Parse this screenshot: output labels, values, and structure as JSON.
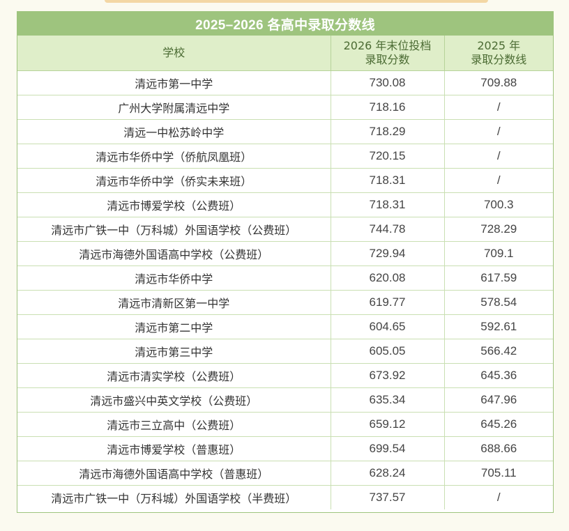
{
  "title": "2025–2026 各高中录取分数线",
  "headers": {
    "school": "学校",
    "score_2026_line1": "2026 年末位投档",
    "score_2026_line2": "录取分数",
    "score_2025_line1": "2025 年",
    "score_2025_line2": "录取分数线"
  },
  "rows": [
    {
      "school": "清远市第一中学",
      "score_2026": "730.08",
      "score_2025": "709.88"
    },
    {
      "school": "广州大学附属清远中学",
      "score_2026": "718.16",
      "score_2025": "/"
    },
    {
      "school": "清远一中松苏岭中学",
      "score_2026": "718.29",
      "score_2025": "/"
    },
    {
      "school": "清远市华侨中学（侨航凤凰班）",
      "score_2026": "720.15",
      "score_2025": "/"
    },
    {
      "school": "清远市华侨中学（侨实未来班）",
      "score_2026": "718.31",
      "score_2025": "/"
    },
    {
      "school": "清远市博爱学校（公费班）",
      "score_2026": "718.31",
      "score_2025": "700.3"
    },
    {
      "school": "清远市广铁一中（万科城）外国语学校（公费班）",
      "score_2026": "744.78",
      "score_2025": "728.29"
    },
    {
      "school": "清远市海德外国语高中学校（公费班）",
      "score_2026": "729.94",
      "score_2025": "709.1"
    },
    {
      "school": "清远市华侨中学",
      "score_2026": "620.08",
      "score_2025": "617.59"
    },
    {
      "school": "清远市清新区第一中学",
      "score_2026": "619.77",
      "score_2025": "578.54"
    },
    {
      "school": "清远市第二中学",
      "score_2026": "604.65",
      "score_2025": "592.61"
    },
    {
      "school": "清远市第三中学",
      "score_2026": "605.05",
      "score_2025": "566.42"
    },
    {
      "school": "清远市清实学校（公费班）",
      "score_2026": "673.92",
      "score_2025": "645.36"
    },
    {
      "school": "清远市盛兴中英文学校（公费班）",
      "score_2026": "635.34",
      "score_2025": "647.96"
    },
    {
      "school": "清远市三立高中（公费班）",
      "score_2026": "659.12",
      "score_2025": "645.26"
    },
    {
      "school": "清远市博爱学校（普惠班）",
      "score_2026": "699.54",
      "score_2025": "688.66"
    },
    {
      "school": "清远市海德外国语高中学校（普惠班）",
      "score_2026": "628.24",
      "score_2025": "705.11"
    },
    {
      "school": "清远市广铁一中（万科城）外国语学校（半费班）",
      "score_2026": "737.57",
      "score_2025": "/"
    }
  ],
  "colors": {
    "accent": "#9ec47e",
    "header_bg": "#dfeec9",
    "header_text": "#4b6b33",
    "page_bg": "#fbfaf0"
  }
}
